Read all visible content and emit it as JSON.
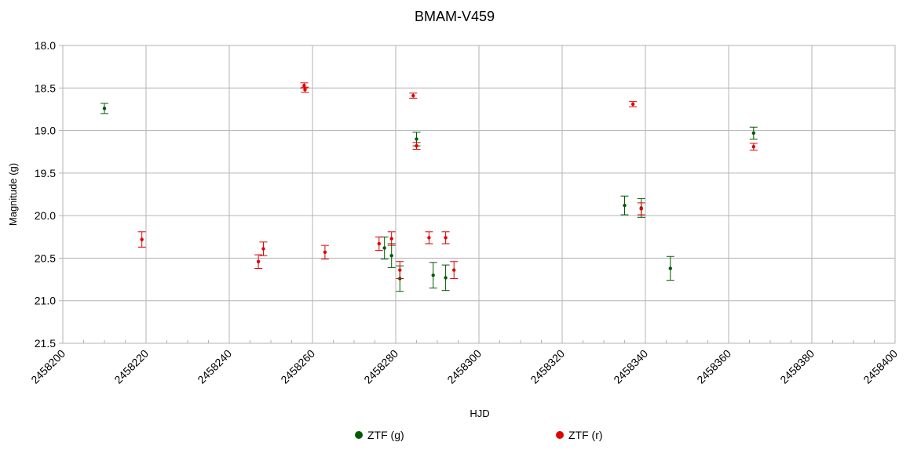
{
  "chart_data": {
    "type": "scatter",
    "title": "BMAM-V459",
    "xlabel": "HJD",
    "ylabel": "Magnitude (g)",
    "xlim": [
      2458200,
      2458400
    ],
    "ylim": [
      18.0,
      21.5
    ],
    "y_inverted": true,
    "grid": true,
    "legend_position": "bottom",
    "x_ticks": [
      "2458200",
      "2458220",
      "2458240",
      "2458260",
      "2458280",
      "2458300",
      "2458320",
      "2458340",
      "2458360",
      "2458380",
      "2458400"
    ],
    "y_ticks": [
      "18.0",
      "18.5",
      "19.0",
      "19.5",
      "20.0",
      "20.5",
      "21.0",
      "21.5"
    ],
    "series": [
      {
        "name": "ZTF (g)",
        "color": "#005a00",
        "points": [
          {
            "x": 2458210.0,
            "y": 18.74,
            "err": 0.06
          },
          {
            "x": 2458277.3,
            "y": 20.38,
            "err": 0.13
          },
          {
            "x": 2458279.0,
            "y": 20.47,
            "err": 0.14
          },
          {
            "x": 2458281.0,
            "y": 20.74,
            "err": 0.15
          },
          {
            "x": 2458285.0,
            "y": 19.1,
            "err": 0.08
          },
          {
            "x": 2458289.0,
            "y": 20.7,
            "err": 0.15
          },
          {
            "x": 2458292.0,
            "y": 20.73,
            "err": 0.15
          },
          {
            "x": 2458335.0,
            "y": 19.88,
            "err": 0.11
          },
          {
            "x": 2458339.0,
            "y": 19.91,
            "err": 0.11
          },
          {
            "x": 2458346.0,
            "y": 20.62,
            "err": 0.14
          },
          {
            "x": 2458366.0,
            "y": 19.03,
            "err": 0.07
          }
        ]
      },
      {
        "name": "ZTF (r)",
        "color": "#e00000",
        "points": [
          {
            "x": 2458219.0,
            "y": 20.28,
            "err": 0.09
          },
          {
            "x": 2458247.0,
            "y": 20.54,
            "err": 0.08
          },
          {
            "x": 2458248.2,
            "y": 20.39,
            "err": 0.08
          },
          {
            "x": 2458258.0,
            "y": 18.47,
            "err": 0.03
          },
          {
            "x": 2458258.2,
            "y": 18.52,
            "err": 0.03
          },
          {
            "x": 2458263.0,
            "y": 20.43,
            "err": 0.08
          },
          {
            "x": 2458276.0,
            "y": 20.33,
            "err": 0.08
          },
          {
            "x": 2458279.0,
            "y": 20.27,
            "err": 0.08
          },
          {
            "x": 2458281.0,
            "y": 20.64,
            "err": 0.1
          },
          {
            "x": 2458284.2,
            "y": 18.59,
            "err": 0.03
          },
          {
            "x": 2458285.0,
            "y": 19.18,
            "err": 0.04
          },
          {
            "x": 2458288.0,
            "y": 20.26,
            "err": 0.07
          },
          {
            "x": 2458292.0,
            "y": 20.26,
            "err": 0.07
          },
          {
            "x": 2458294.0,
            "y": 20.64,
            "err": 0.1
          },
          {
            "x": 2458337.0,
            "y": 18.69,
            "err": 0.03
          },
          {
            "x": 2458339.0,
            "y": 19.92,
            "err": 0.07
          },
          {
            "x": 2458366.0,
            "y": 19.19,
            "err": 0.04
          }
        ]
      }
    ]
  }
}
